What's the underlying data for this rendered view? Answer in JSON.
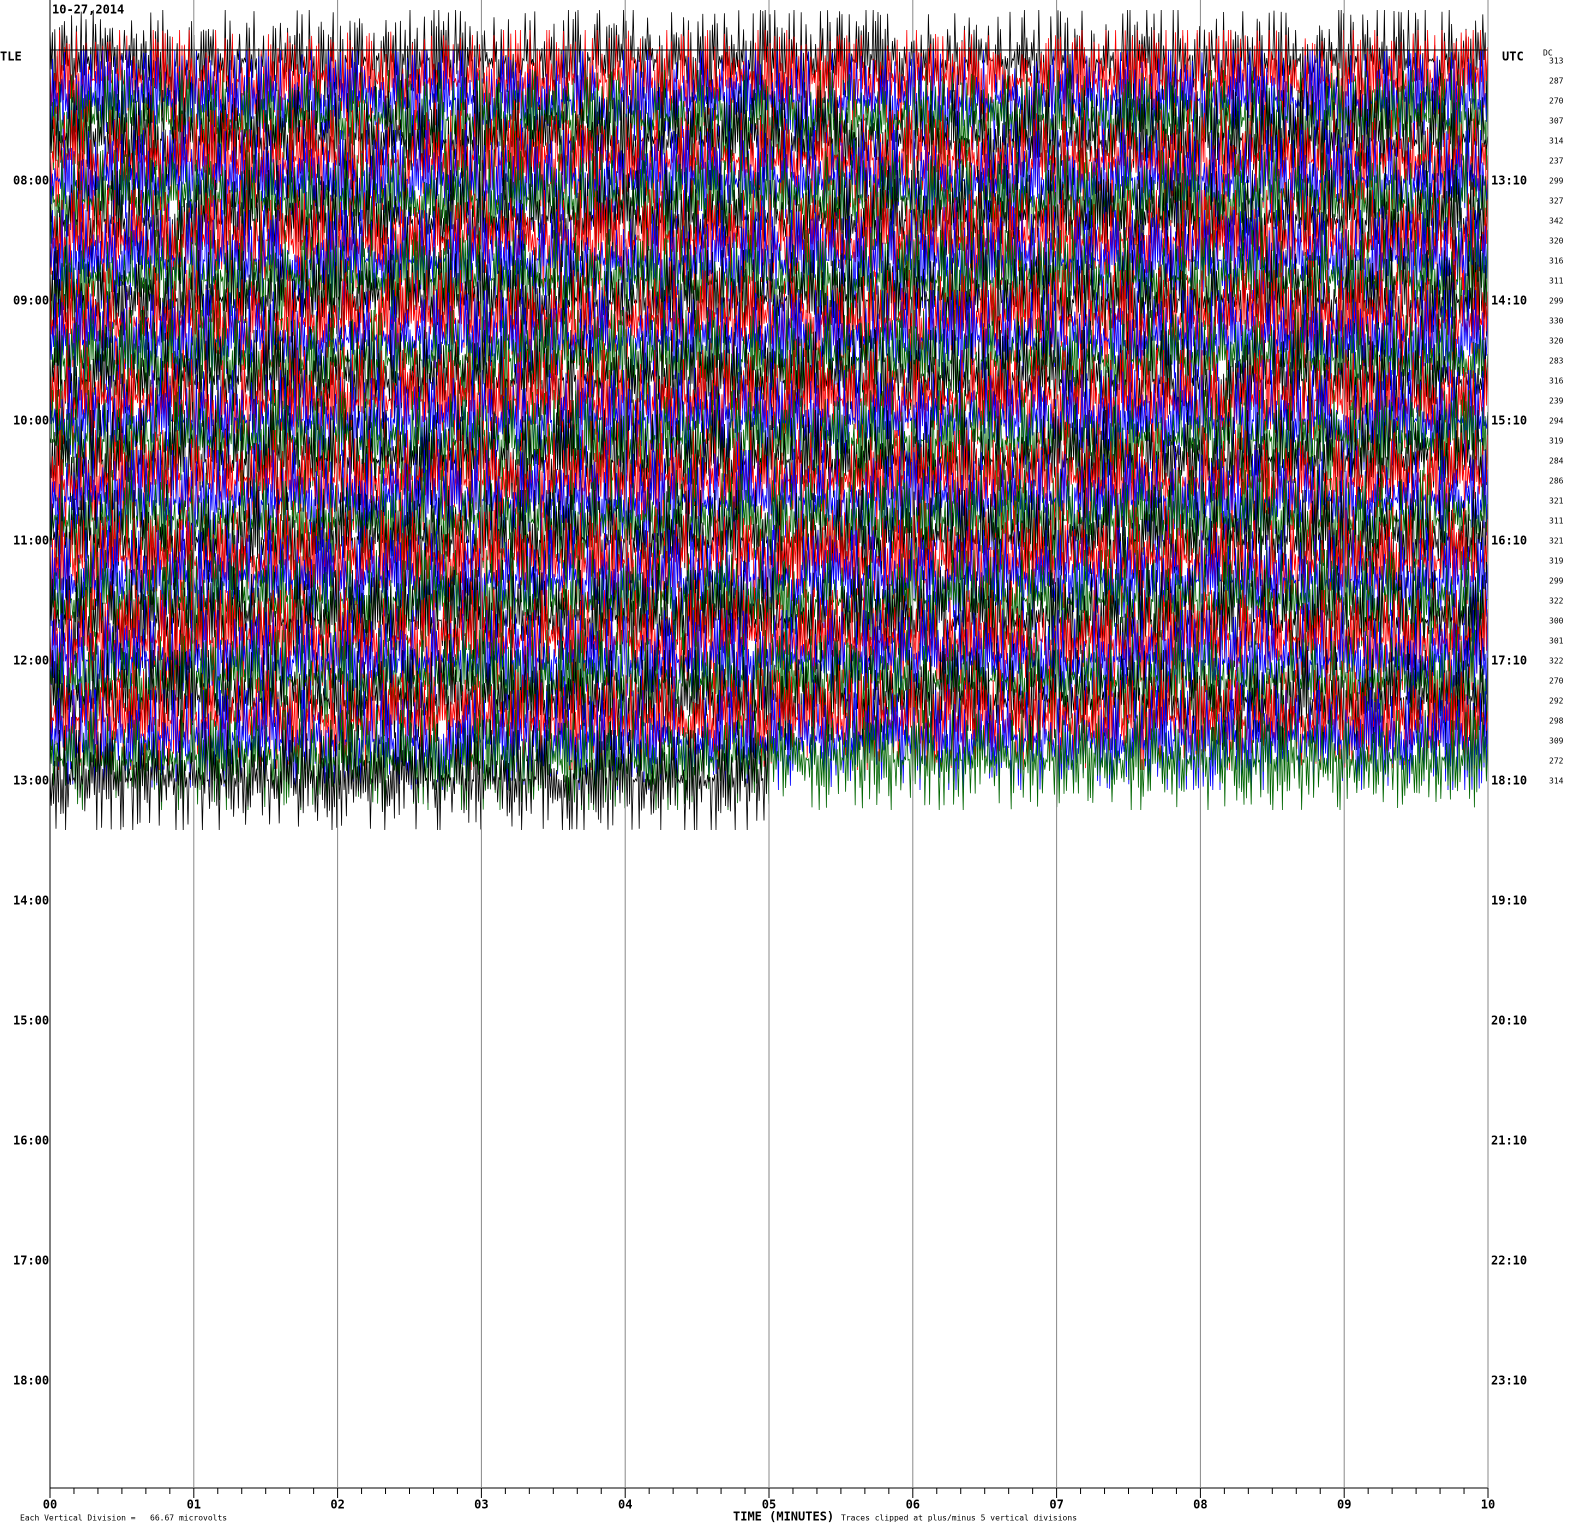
{
  "header": {
    "date": "10-27,2014"
  },
  "left_title": "TLE",
  "right_title": "UTC",
  "dc_title": "DC",
  "left_times": [
    "08:00",
    "09:00",
    "10:00",
    "11:00",
    "12:00",
    "13:00",
    "14:00",
    "15:00",
    "16:00",
    "17:00",
    "18:00"
  ],
  "right_times": [
    "13:10",
    "14:10",
    "15:10",
    "16:10",
    "17:10",
    "18:10",
    "19:10",
    "20:10",
    "21:10",
    "22:10",
    "23:10"
  ],
  "dc_values": [
    313,
    287,
    270,
    307,
    314,
    237,
    299,
    327,
    342,
    320,
    316,
    311,
    299,
    330,
    320,
    283,
    316,
    239,
    294,
    319,
    284,
    286,
    321,
    311,
    321,
    319,
    299,
    322,
    300,
    301,
    322,
    270,
    292,
    298,
    309,
    272,
    314
  ],
  "x_ticks": [
    "00",
    "01",
    "02",
    "03",
    "04",
    "05",
    "06",
    "07",
    "08",
    "09",
    "10"
  ],
  "x_label": "TIME (MINUTES)",
  "footer_left": "Each Vertical Division =   66.67 microvolts",
  "footer_right": "Traces clipped at plus/minus 5 vertical divisions"
}
